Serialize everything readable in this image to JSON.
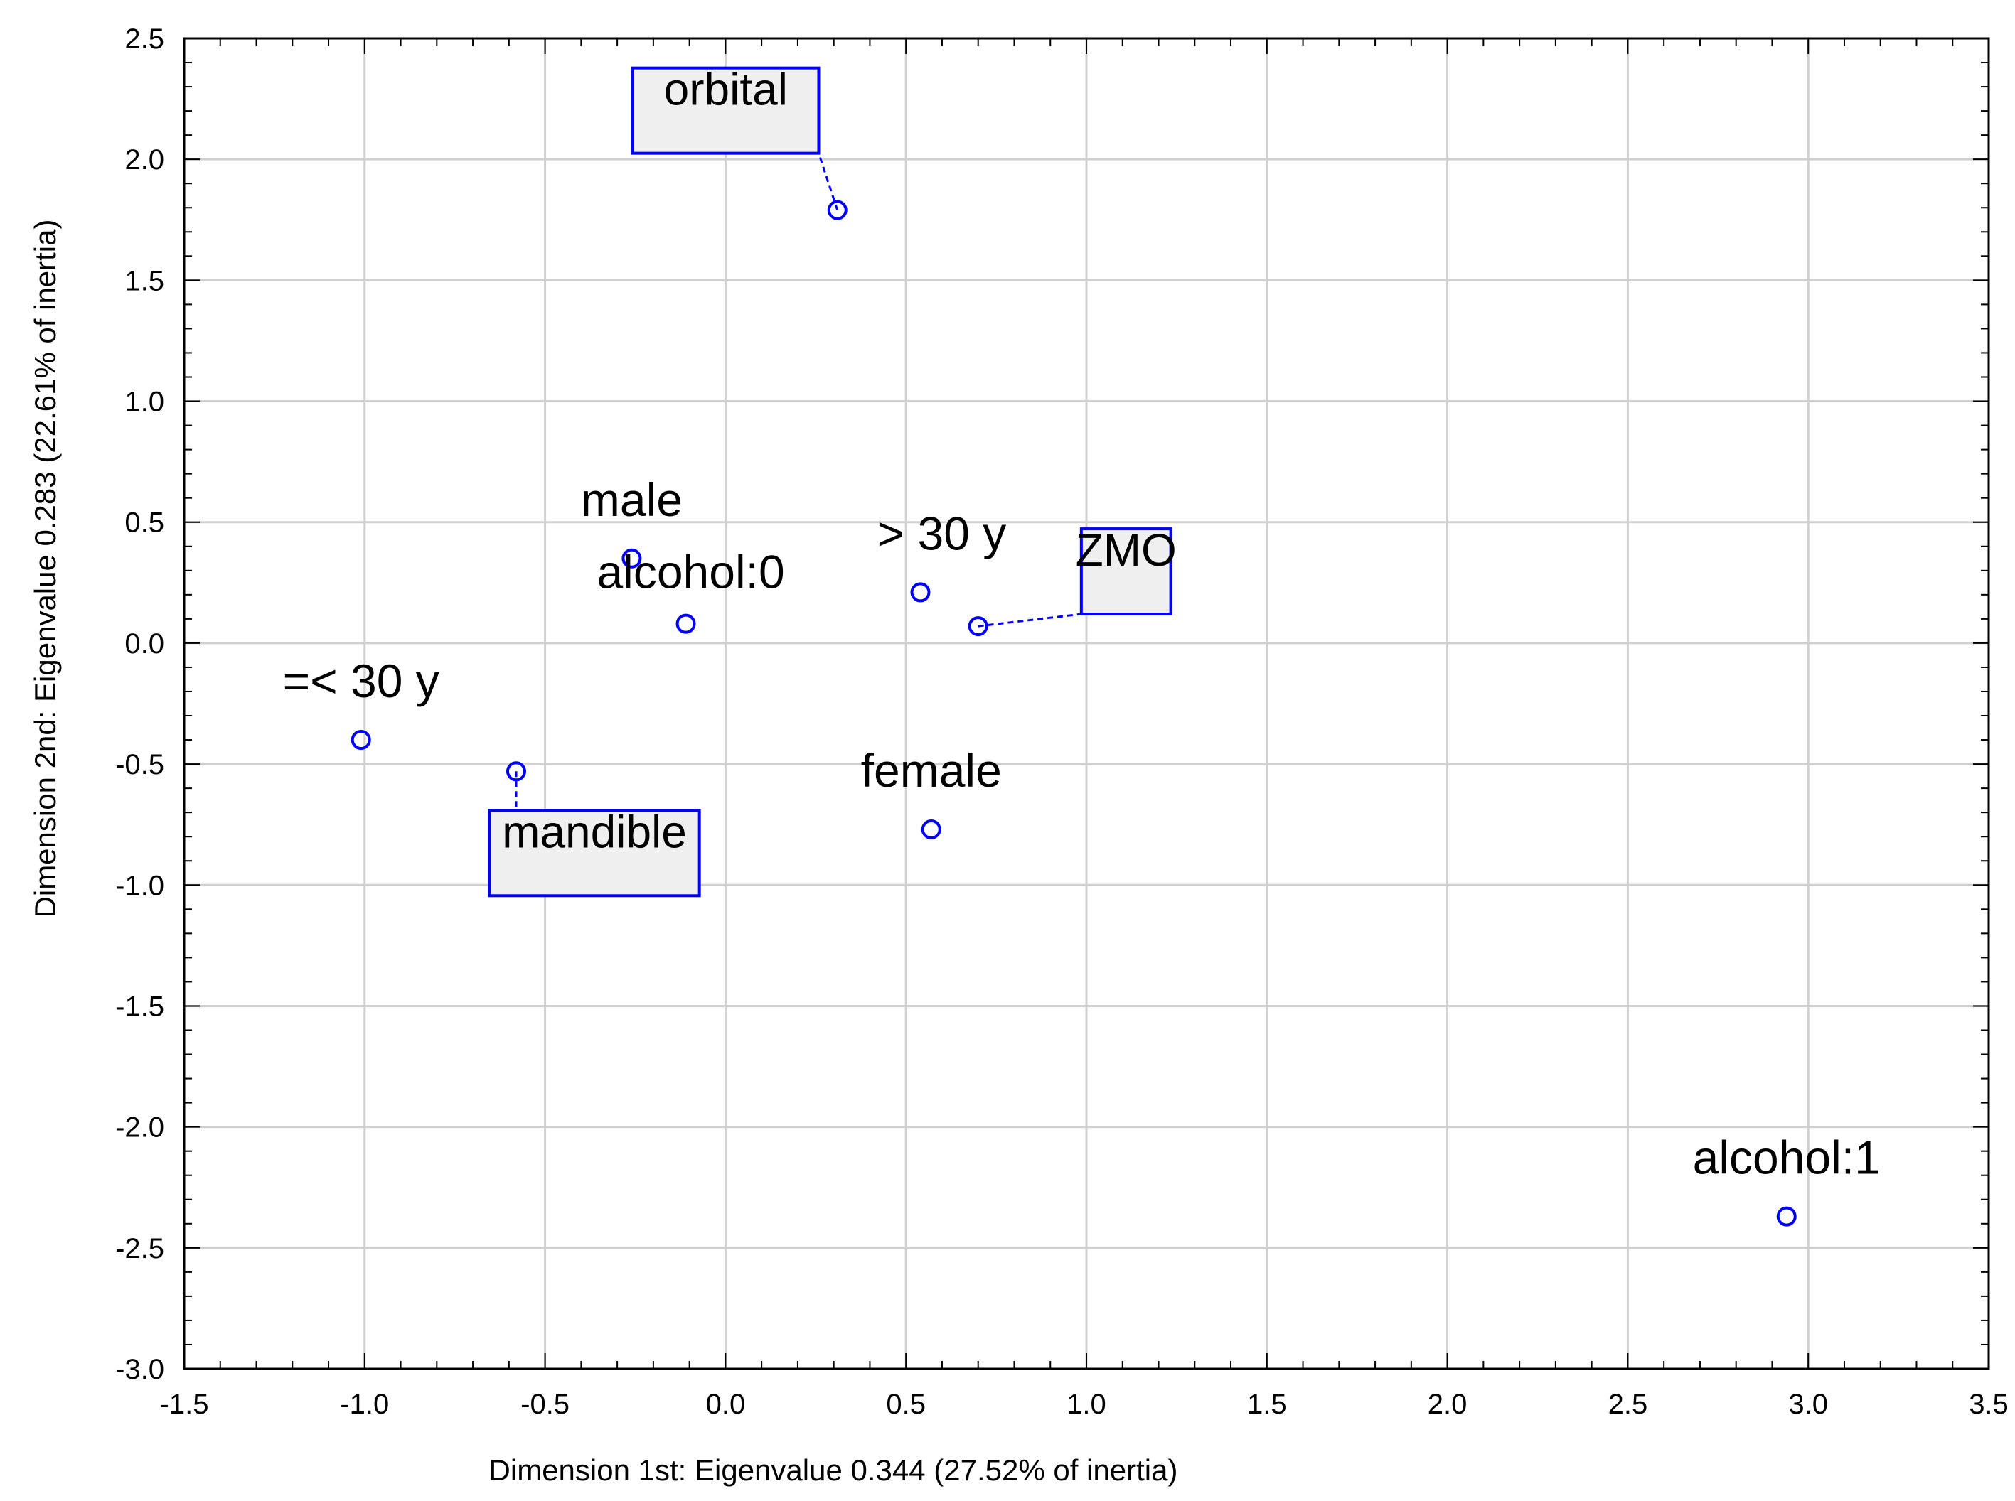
{
  "chart_data": {
    "type": "scatter",
    "title": "",
    "xlabel": "Dimension 1st: Eigenvalue 0.344 (27.52% of inertia)",
    "ylabel": "Dimension 2nd: Eigenvalue 0.283 (22.61% of inertia)",
    "xlim": [
      -1.5,
      3.5
    ],
    "ylim": [
      -3.0,
      2.5
    ],
    "x_ticks": [
      -1.5,
      -1.0,
      -0.5,
      0.0,
      0.5,
      1.0,
      1.5,
      2.0,
      2.5,
      3.0,
      3.5
    ],
    "y_ticks": [
      -3.0,
      -2.5,
      -2.0,
      -1.5,
      -1.0,
      -0.5,
      0.0,
      0.5,
      1.0,
      1.5,
      2.0,
      2.5
    ],
    "x_tick_labels": [
      "-1.5",
      "-1.0",
      "-0.5",
      "0.0",
      "0.5",
      "1.0",
      "1.5",
      "2.0",
      "2.5",
      "3.0",
      "3.5"
    ],
    "y_tick_labels": [
      "-3.0",
      "-2.5",
      "-2.0",
      "-1.5",
      "-1.0",
      "-0.5",
      "0.0",
      "0.5",
      "1.0",
      "1.5",
      "2.0",
      "2.5"
    ],
    "grid": true,
    "marker_color": "#0000ff",
    "box_fill": "#efefef",
    "points": [
      {
        "label": "orbital",
        "x": 0.31,
        "y": 1.79,
        "boxed": true
      },
      {
        "label": "male",
        "x": -0.26,
        "y": 0.35,
        "boxed": false
      },
      {
        "label": "alcohol:0",
        "x": -0.11,
        "y": 0.08,
        "boxed": false
      },
      {
        "label": "> 30 y",
        "x": 0.54,
        "y": 0.21,
        "boxed": false
      },
      {
        "label": "ZMO",
        "x": 0.7,
        "y": 0.07,
        "boxed": true
      },
      {
        "label": "=< 30 y",
        "x": -1.01,
        "y": -0.4,
        "boxed": false
      },
      {
        "label": "mandible",
        "x": -0.58,
        "y": -0.53,
        "boxed": true
      },
      {
        "label": "female",
        "x": 0.57,
        "y": -0.77,
        "boxed": false
      },
      {
        "label": "alcohol:1",
        "x": 2.94,
        "y": -2.37,
        "boxed": false
      }
    ]
  }
}
